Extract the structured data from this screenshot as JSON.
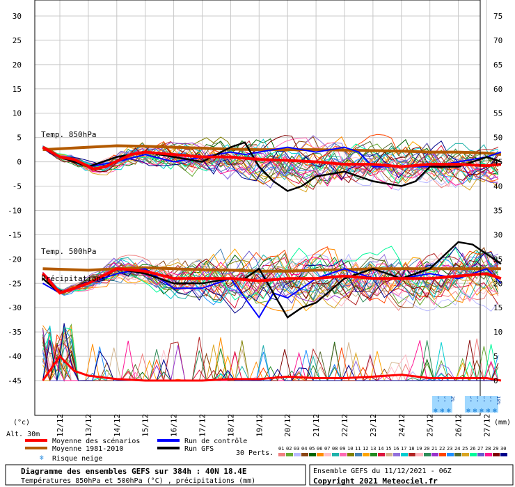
{
  "chart_data": {
    "type": "line",
    "left_axis": {
      "ticks": [
        "30",
        "25",
        "20",
        "15",
        "10",
        "5",
        "0",
        "-5",
        "-10",
        "-15",
        "-20",
        "-25",
        "-30",
        "-35",
        "-40",
        "-45"
      ],
      "unit": "(°c)",
      "range": [
        -45,
        30
      ]
    },
    "right_axis": {
      "ticks": [
        "75",
        "70",
        "65",
        "60",
        "55",
        "50",
        "45",
        "40",
        "35",
        "30",
        "25",
        "20",
        "15",
        "10",
        "5",
        "0"
      ],
      "unit": "(mm)",
      "range": [
        0,
        75
      ]
    },
    "x_ticks": [
      "12/12",
      "13/12",
      "14/12",
      "15/12",
      "16/12",
      "17/12",
      "18/12",
      "19/12",
      "20/12",
      "21/12",
      "22/12",
      "23/12",
      "24/12",
      "25/12",
      "26/12",
      "27/12"
    ],
    "alt_label": "Alt. 30m",
    "panel_labels": {
      "t850": "Temp. 850hPa",
      "t500": "Temp. 500hPa",
      "precip": "Précipitations"
    },
    "snow_risk": [
      {
        "day": 13.2,
        "values": [
          "3%",
          "6%",
          "3%"
        ]
      },
      {
        "day": 14.35,
        "values": [
          "3%",
          "6%",
          "6%",
          "6%",
          "10%"
        ]
      }
    ],
    "x_range_days": [
      0,
      15.5
    ],
    "series": {
      "t850_mean": [
        [
          -0.6,
          3
        ],
        [
          0,
          1
        ],
        [
          0.5,
          0.5
        ],
        [
          1.2,
          -1.5
        ],
        [
          1.6,
          -1
        ],
        [
          2.5,
          1.5
        ],
        [
          3,
          2
        ],
        [
          4,
          1.5
        ],
        [
          5,
          1
        ],
        [
          6,
          1
        ],
        [
          7,
          0.5
        ],
        [
          8,
          0.3
        ],
        [
          9,
          0
        ],
        [
          10,
          -0.5
        ],
        [
          11,
          -0.5
        ],
        [
          12,
          -1
        ],
        [
          13,
          -0.5
        ],
        [
          14,
          -0.5
        ],
        [
          15,
          -0.8
        ],
        [
          15.5,
          -0.5
        ]
      ],
      "t850_clim": [
        [
          -0.6,
          2.5
        ],
        [
          1,
          3
        ],
        [
          2,
          3.3
        ],
        [
          3,
          3.2
        ],
        [
          4,
          3
        ],
        [
          5,
          2.8
        ],
        [
          6,
          2.6
        ],
        [
          7,
          2.5
        ],
        [
          8,
          2.5
        ],
        [
          9,
          2.5
        ],
        [
          10,
          2.4
        ],
        [
          11,
          2.3
        ],
        [
          12,
          2.2
        ],
        [
          13,
          2
        ],
        [
          14,
          2
        ],
        [
          15,
          1.8
        ],
        [
          15.5,
          1.5
        ]
      ],
      "t850_control": [
        [
          -0.6,
          3
        ],
        [
          0,
          1
        ],
        [
          1,
          -1
        ],
        [
          2,
          0
        ],
        [
          3,
          1.5
        ],
        [
          4,
          0
        ],
        [
          5,
          1
        ],
        [
          6,
          2
        ],
        [
          6.5,
          1.5
        ],
        [
          7,
          2
        ],
        [
          8,
          3
        ],
        [
          9,
          2
        ],
        [
          10,
          3
        ],
        [
          10.5,
          2
        ],
        [
          11,
          -1
        ],
        [
          12,
          -1
        ],
        [
          13,
          -1
        ],
        [
          14,
          0
        ],
        [
          15,
          1
        ],
        [
          15.5,
          2
        ]
      ],
      "t850_gfs": [
        [
          -0.6,
          3
        ],
        [
          0,
          1
        ],
        [
          1,
          -1
        ],
        [
          2,
          1
        ],
        [
          3,
          2
        ],
        [
          4,
          1
        ],
        [
          5,
          0
        ],
        [
          6,
          3
        ],
        [
          6.5,
          4
        ],
        [
          7,
          -1
        ],
        [
          7.5,
          -4
        ],
        [
          8,
          -6
        ],
        [
          8.5,
          -5
        ],
        [
          9,
          -3
        ],
        [
          10,
          -2
        ],
        [
          11,
          -4
        ],
        [
          12,
          -5
        ],
        [
          12.5,
          -4
        ],
        [
          13,
          -1
        ],
        [
          14,
          -1
        ],
        [
          15,
          1
        ],
        [
          15.5,
          0
        ]
      ],
      "t500_mean": [
        [
          -0.6,
          -23
        ],
        [
          0,
          -27
        ],
        [
          0.5,
          -26
        ],
        [
          1,
          -25
        ],
        [
          2,
          -22
        ],
        [
          3,
          -22.5
        ],
        [
          4,
          -24
        ],
        [
          5,
          -24
        ],
        [
          6,
          -24
        ],
        [
          7,
          -24.5
        ],
        [
          8,
          -24
        ],
        [
          9,
          -24
        ],
        [
          10,
          -23.5
        ],
        [
          11,
          -24
        ],
        [
          12,
          -24
        ],
        [
          13,
          -24
        ],
        [
          14,
          -23.5
        ],
        [
          15,
          -23
        ],
        [
          15.5,
          -24
        ]
      ],
      "t500_clim": [
        [
          -0.6,
          -22
        ],
        [
          1,
          -22.3
        ],
        [
          2,
          -22
        ],
        [
          3,
          -21.8
        ],
        [
          4,
          -22
        ],
        [
          5,
          -22.2
        ],
        [
          6,
          -22.3
        ],
        [
          7,
          -22.5
        ],
        [
          8,
          -22.5
        ],
        [
          9,
          -22.3
        ],
        [
          10,
          -22.2
        ],
        [
          11,
          -22
        ],
        [
          12,
          -22
        ],
        [
          13,
          -22
        ],
        [
          14,
          -22
        ],
        [
          15,
          -22
        ],
        [
          15.5,
          -22
        ]
      ],
      "t500_control": [
        [
          -0.6,
          -25
        ],
        [
          0,
          -27
        ],
        [
          1,
          -25
        ],
        [
          2,
          -23
        ],
        [
          3,
          -22
        ],
        [
          4,
          -26
        ],
        [
          5,
          -26
        ],
        [
          6,
          -24
        ],
        [
          6.5,
          -28
        ],
        [
          7,
          -32
        ],
        [
          7.5,
          -27
        ],
        [
          8,
          -28
        ],
        [
          9,
          -24
        ],
        [
          10,
          -22
        ],
        [
          11,
          -24
        ],
        [
          12,
          -24
        ],
        [
          13,
          -23
        ],
        [
          14,
          -24
        ],
        [
          15,
          -22
        ],
        [
          15.5,
          -25
        ]
      ],
      "t500_gfs": [
        [
          -0.6,
          -24
        ],
        [
          0,
          -27
        ],
        [
          1,
          -25
        ],
        [
          2,
          -22
        ],
        [
          3,
          -23
        ],
        [
          4,
          -25
        ],
        [
          5,
          -25
        ],
        [
          6,
          -24
        ],
        [
          6.5,
          -24
        ],
        [
          7,
          -22
        ],
        [
          8,
          -32
        ],
        [
          8.5,
          -30
        ],
        [
          9,
          -29
        ],
        [
          10,
          -24
        ],
        [
          11,
          -22
        ],
        [
          12,
          -24
        ],
        [
          13,
          -22
        ],
        [
          14,
          -16.5
        ],
        [
          14.5,
          -17
        ],
        [
          15,
          -19
        ],
        [
          15.5,
          -21
        ]
      ],
      "precip_mean_mm": [
        [
          -0.6,
          0
        ],
        [
          0,
          5
        ],
        [
          0.5,
          2
        ],
        [
          1,
          1
        ],
        [
          2,
          0.3
        ],
        [
          3,
          0
        ],
        [
          5,
          0
        ],
        [
          6,
          0.3
        ],
        [
          7,
          0.3
        ],
        [
          8,
          0.8
        ],
        [
          9,
          0.5
        ],
        [
          10,
          0.5
        ],
        [
          11,
          0.8
        ],
        [
          12,
          1.2
        ],
        [
          13,
          0.5
        ],
        [
          14,
          0.5
        ],
        [
          15,
          0.5
        ],
        [
          15.5,
          0
        ]
      ]
    },
    "legend": [
      {
        "label": "Moyenne des scénarios",
        "color": "#ff0000"
      },
      {
        "label": "Moyenne 1981-2010",
        "color": "#b35a00"
      },
      {
        "label": "Run de contrôle",
        "color": "#0000ff"
      },
      {
        "label": "Run GFS",
        "color": "#000000"
      }
    ],
    "snow_label": "Risque neige",
    "perts_label": "30 Perts.",
    "pert_numbers": [
      "01",
      "02",
      "03",
      "04",
      "05",
      "06",
      "07",
      "08",
      "09",
      "10",
      "11",
      "12",
      "13",
      "14",
      "15",
      "16",
      "17",
      "18",
      "19",
      "20",
      "21",
      "22",
      "23",
      "24",
      "25",
      "26",
      "27",
      "28",
      "29",
      "30"
    ],
    "pert_colors": [
      "#f08080",
      "#66aa33",
      "#b8b8ff",
      "#8b4513",
      "#006400",
      "#ff8c00",
      "#ffc0cb",
      "#20b2aa",
      "#ff69b4",
      "#808000",
      "#4682b4",
      "#ffa500",
      "#228b22",
      "#dc143c",
      "#d2b48c",
      "#9370db",
      "#00ced1",
      "#b22222",
      "#ffb6c1",
      "#2e8b57",
      "#9932cc",
      "#ff4500",
      "#1e90ff",
      "#556b2f",
      "#daa520",
      "#00fa9a",
      "#6a5acd",
      "#ff1493",
      "#800000",
      "#00008b"
    ]
  },
  "footer": {
    "title": "Diagramme des ensembles GEFS sur 384h : 40N 18.4E",
    "subtitle": "Températures 850hPa et 500hPa (°C) , précipitations (mm)",
    "run_info": "Ensemble GEFS du 11/12/2021 - 06Z",
    "copyright": "Copyright 2021 Meteociel.fr"
  }
}
